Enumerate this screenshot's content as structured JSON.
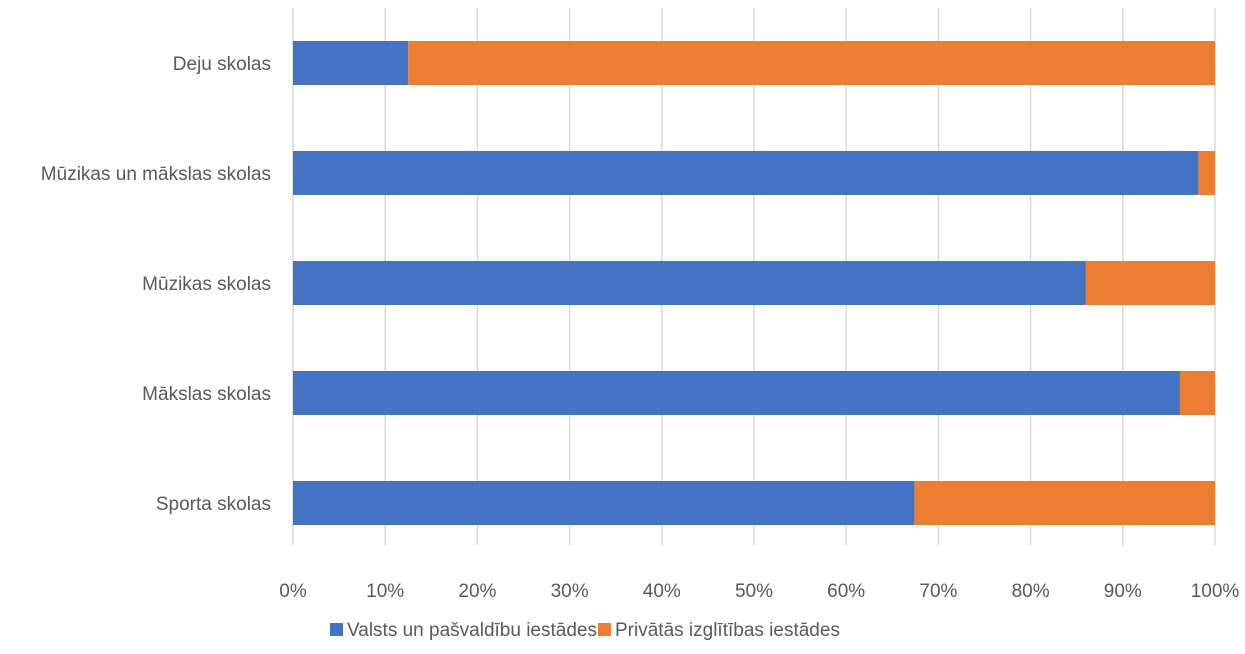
{
  "chart_data": {
    "type": "bar",
    "orientation": "horizontal",
    "stacked": "percent",
    "categories": [
      "Deju skolas",
      "Mūzikas un mākslas skolas",
      "Mūzikas skolas",
      "Mākslas skolas",
      "Sporta skolas"
    ],
    "series": [
      {
        "name": "Valsts un pašvaldību iestādes",
        "color": "#4472C4",
        "values": [
          12.5,
          98.2,
          86.0,
          96.2,
          67.4
        ]
      },
      {
        "name": "Privātās izglītības iestādes",
        "color": "#ED7D31",
        "values": [
          87.5,
          1.8,
          14.0,
          3.8,
          32.6
        ]
      }
    ],
    "x_ticks": [
      "0%",
      "10%",
      "20%",
      "30%",
      "40%",
      "50%",
      "60%",
      "70%",
      "80%",
      "90%",
      "100%"
    ],
    "xlim": [
      0,
      100
    ],
    "grid": true,
    "legend_position": "bottom"
  }
}
